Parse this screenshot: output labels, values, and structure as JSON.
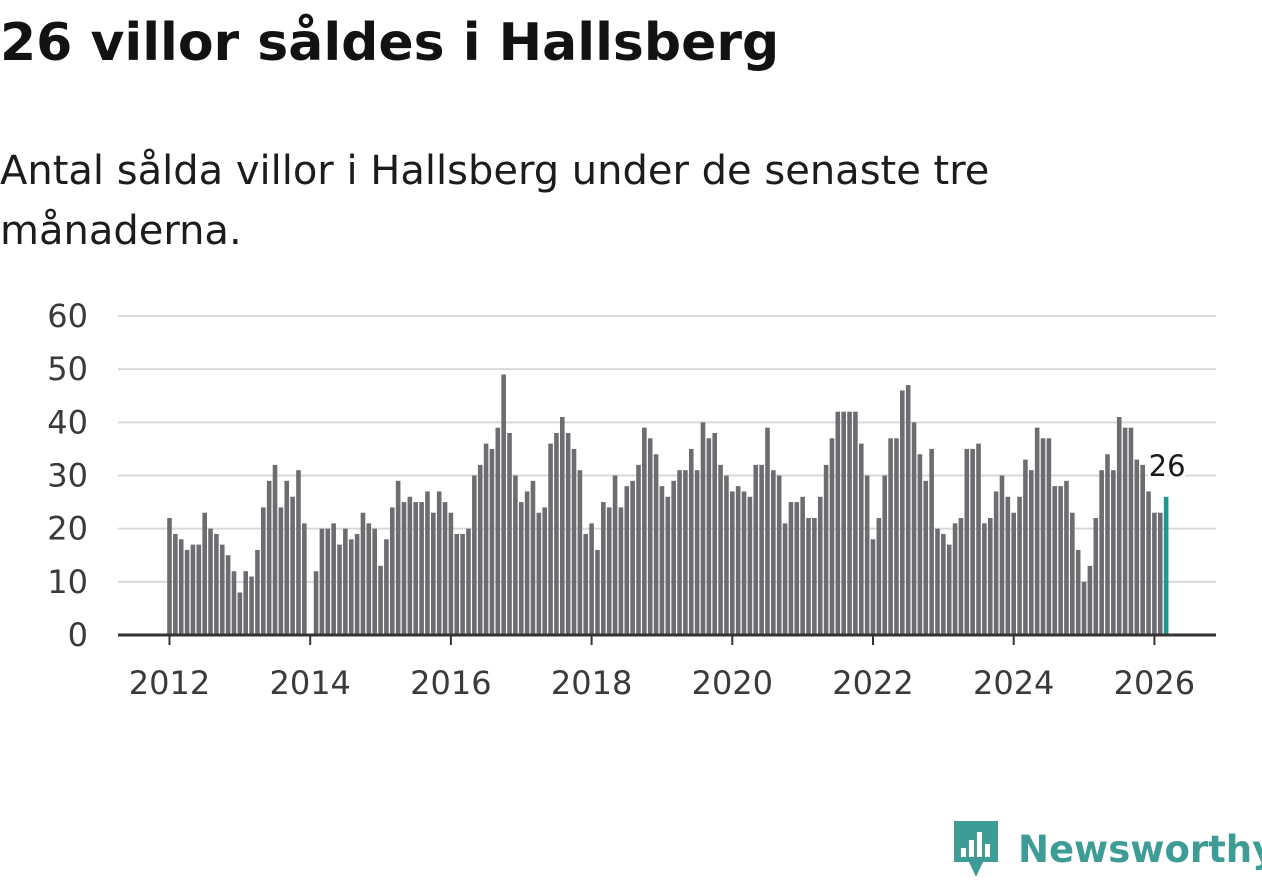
{
  "title": "26 villor såldes i Hallsberg",
  "subtitle": "Antal sålda villor i Hallsberg under de senaste tre månaderna.",
  "brand": {
    "name": "Newsworthy",
    "icon": "newsworthy-logo-icon",
    "color": "#3e9c96"
  },
  "chart_data": {
    "type": "bar",
    "title": "26 villor såldes i Hallsberg",
    "xlabel": "",
    "ylabel": "",
    "ylim": [
      0,
      60
    ],
    "yticks": [
      0,
      10,
      20,
      30,
      40,
      50,
      60
    ],
    "xticks": [
      "2012",
      "2014",
      "2016",
      "2018",
      "2020",
      "2022",
      "2024",
      "2026"
    ],
    "grid": true,
    "start": "2012-01",
    "bar_color": "#6d6c71",
    "highlight_color": "#19998f",
    "highlight_label": "26",
    "values": [
      22,
      19,
      18,
      16,
      17,
      17,
      23,
      20,
      19,
      17,
      15,
      12,
      8,
      12,
      11,
      16,
      24,
      29,
      32,
      24,
      29,
      26,
      31,
      21,
      0,
      12,
      20,
      20,
      21,
      17,
      20,
      18,
      19,
      23,
      21,
      20,
      13,
      18,
      24,
      29,
      25,
      26,
      25,
      25,
      27,
      23,
      27,
      25,
      23,
      19,
      19,
      20,
      30,
      32,
      36,
      35,
      39,
      49,
      38,
      30,
      25,
      27,
      29,
      23,
      24,
      36,
      38,
      41,
      38,
      35,
      31,
      19,
      21,
      16,
      25,
      24,
      30,
      24,
      28,
      29,
      32,
      39,
      37,
      34,
      28,
      26,
      29,
      31,
      31,
      35,
      31,
      40,
      37,
      38,
      32,
      30,
      27,
      28,
      27,
      26,
      32,
      32,
      39,
      31,
      30,
      21,
      25,
      25,
      26,
      22,
      22,
      26,
      32,
      37,
      42,
      42,
      42,
      42,
      36,
      30,
      18,
      22,
      30,
      37,
      37,
      46,
      47,
      40,
      34,
      29,
      35,
      20,
      19,
      17,
      21,
      22,
      35,
      35,
      36,
      21,
      22,
      27,
      30,
      26,
      23,
      26,
      33,
      31,
      39,
      37,
      37,
      28,
      28,
      29,
      23,
      16,
      10,
      13,
      22,
      31,
      34,
      31,
      41,
      39,
      39,
      33,
      32,
      27,
      23,
      23,
      26
    ]
  }
}
